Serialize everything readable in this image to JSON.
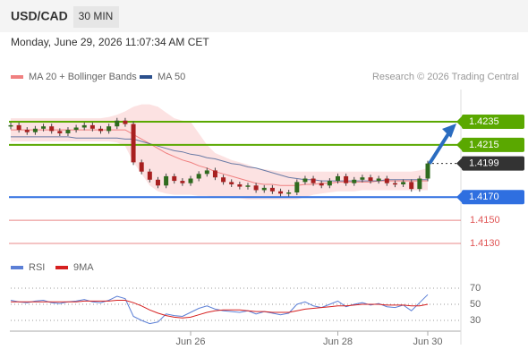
{
  "chart_data": {
    "type": "candlestick",
    "title": "USD/CAD",
    "timeframe": "30 MIN",
    "subtitle": "Monday, June 29, 2026 11:07:34 AM CET",
    "attribution": "Research © 2026 Trading Central",
    "legend": [
      {
        "name": "MA 20 + Bollinger Bands",
        "color": "#f08080"
      },
      {
        "name": "MA 50",
        "color": "#2b4f8c"
      }
    ],
    "categories": [
      null,
      null,
      null,
      null,
      null,
      null,
      null,
      null,
      null,
      null,
      null,
      null,
      null,
      null,
      null,
      null,
      null,
      null,
      null,
      null,
      null,
      null,
      "Jun 26",
      null,
      null,
      null,
      null,
      null,
      null,
      null,
      null,
      null,
      null,
      null,
      null,
      null,
      null,
      null,
      null,
      null,
      "Jun 28",
      null,
      null,
      null,
      null,
      null,
      null,
      null,
      null,
      null,
      null,
      "Jun 30"
    ],
    "close": [
      1.4232,
      1.4228,
      1.4226,
      1.4229,
      1.4231,
      1.4227,
      1.4225,
      1.4228,
      1.423,
      1.4232,
      1.4229,
      1.4227,
      1.4231,
      1.4236,
      1.4233,
      1.42,
      1.4192,
      1.4185,
      1.418,
      1.4188,
      1.4184,
      1.4182,
      1.4186,
      1.419,
      1.4193,
      1.4187,
      1.4183,
      1.4181,
      1.4179,
      1.418,
      1.4176,
      1.4178,
      1.4175,
      1.4173,
      1.4174,
      1.4183,
      1.4186,
      1.4182,
      1.418,
      1.4184,
      1.4188,
      1.4182,
      1.4185,
      1.4187,
      1.4184,
      1.4186,
      1.4182,
      1.4181,
      1.4183,
      1.4177,
      1.4186,
      1.4199
    ],
    "ma20": [
      1.4228,
      1.4228,
      1.4228,
      1.4228,
      1.4228,
      1.4228,
      1.4228,
      1.4228,
      1.4228,
      1.4228,
      1.4228,
      1.4228,
      1.4228,
      1.4228,
      1.4228,
      1.4224,
      1.422,
      1.4216,
      1.4212,
      1.4208,
      1.4205,
      1.4202,
      1.42,
      1.4197,
      1.4195,
      1.4192,
      1.419,
      1.4188,
      1.4186,
      1.4184,
      1.4182,
      1.4181,
      1.4181,
      1.418,
      1.418,
      1.418,
      1.4181,
      1.4181,
      1.4182,
      1.4182,
      1.4183,
      1.4183,
      1.4183,
      1.4183,
      1.4183,
      1.4184,
      1.4184,
      1.4184,
      1.4184,
      1.4184,
      1.4184,
      1.4184
    ],
    "upper": [
      1.4238,
      1.4238,
      1.4238,
      1.4238,
      1.4238,
      1.4238,
      1.4238,
      1.4238,
      1.4238,
      1.4238,
      1.4238,
      1.4238,
      1.4239,
      1.4241,
      1.4244,
      1.4248,
      1.425,
      1.425,
      1.4248,
      1.4243,
      1.4238,
      1.4236,
      1.4235,
      1.4225,
      1.4215,
      1.4208,
      1.4205,
      1.4202,
      1.42,
      1.4198,
      1.4195,
      1.4194,
      1.4193,
      1.4192,
      1.4192,
      1.4192,
      1.4192,
      1.4192,
      1.4192,
      1.4192,
      1.4192,
      1.4192,
      1.4192,
      1.4192,
      1.4192,
      1.4192,
      1.4192,
      1.4192,
      1.4192,
      1.4192,
      1.4193,
      1.4195
    ],
    "lower": [
      1.4218,
      1.4218,
      1.4218,
      1.4218,
      1.4218,
      1.4218,
      1.4218,
      1.4218,
      1.4218,
      1.4218,
      1.4218,
      1.4218,
      1.4218,
      1.4217,
      1.4214,
      1.42,
      1.419,
      1.418,
      1.4175,
      1.4173,
      1.4172,
      1.4172,
      1.4172,
      1.4171,
      1.4171,
      1.417,
      1.417,
      1.4169,
      1.4169,
      1.4168,
      1.4168,
      1.4168,
      1.4168,
      1.4168,
      1.4168,
      1.4168,
      1.417,
      1.4172,
      1.4173,
      1.4174,
      1.4175,
      1.4175,
      1.4175,
      1.4176,
      1.4176,
      1.4176,
      1.4176,
      1.4176,
      1.4176,
      1.4176,
      1.4176,
      1.4176
    ],
    "ma50": [
      1.4222,
      1.4222,
      1.4222,
      1.4222,
      1.4222,
      1.4222,
      1.4222,
      1.4222,
      1.4221,
      1.4221,
      1.4221,
      1.4221,
      1.4221,
      1.4221,
      1.422,
      1.422,
      1.4218,
      1.4216,
      1.4214,
      1.4212,
      1.421,
      1.4209,
      1.4207,
      1.4206,
      1.4204,
      1.4203,
      1.4201,
      1.4199,
      1.4198,
      1.4196,
      1.4195,
      1.4193,
      1.4191,
      1.4189,
      1.4187,
      1.4186,
      1.4185,
      1.4185,
      1.4184,
      1.4184,
      1.4184,
      1.4184,
      1.4184,
      1.4184,
      1.4184,
      1.4184,
      1.4185,
      1.4185,
      1.4185,
      1.4185,
      1.4185,
      1.4185
    ],
    "ylim": [
      1.412,
      1.42628
    ],
    "levels": [
      {
        "value": 1.4235,
        "label": "1.4235",
        "color": "#5aa800",
        "style": "solid"
      },
      {
        "value": 1.4215,
        "label": "1.4215",
        "color": "#5aa800",
        "style": "solid"
      },
      {
        "value": 1.4199,
        "label": "1.4199",
        "color": "#333333",
        "style": "dotted"
      },
      {
        "value": 1.417,
        "label": "1.4170",
        "color": "#2f6fe0",
        "style": "solid"
      },
      {
        "value": 1.415,
        "label": "1.4150",
        "color": "#e05555",
        "style": "thin"
      },
      {
        "value": 1.413,
        "label": "1.4130",
        "color": "#e05555",
        "style": "thin"
      }
    ],
    "rsi": {
      "legend": [
        {
          "name": "RSI",
          "color": "#5b7fd6"
        },
        {
          "name": "9MA",
          "color": "#d62020"
        }
      ],
      "ylim": [
        10,
        90
      ],
      "yticks": [
        70,
        50,
        30
      ],
      "values": [
        55,
        53,
        52,
        54,
        55,
        52,
        51,
        53,
        54,
        56,
        53,
        52,
        55,
        60,
        57,
        35,
        30,
        26,
        28,
        38,
        36,
        35,
        40,
        45,
        48,
        44,
        42,
        41,
        40,
        42,
        38,
        41,
        39,
        37,
        39,
        50,
        53,
        48,
        46,
        50,
        54,
        47,
        50,
        52,
        49,
        51,
        47,
        46,
        49,
        42,
        52,
        62
      ],
      "ma_values": [
        53,
        53,
        53,
        53,
        53,
        53,
        53,
        53,
        53,
        54,
        54,
        54,
        54,
        55,
        55,
        52,
        48,
        43,
        39,
        36,
        34,
        33,
        34,
        37,
        40,
        42,
        43,
        43,
        43,
        42,
        41,
        41,
        40,
        40,
        40,
        42,
        44,
        45,
        46,
        47,
        48,
        48,
        49,
        50,
        50,
        50,
        49,
        49,
        49,
        48,
        48,
        50
      ]
    }
  }
}
